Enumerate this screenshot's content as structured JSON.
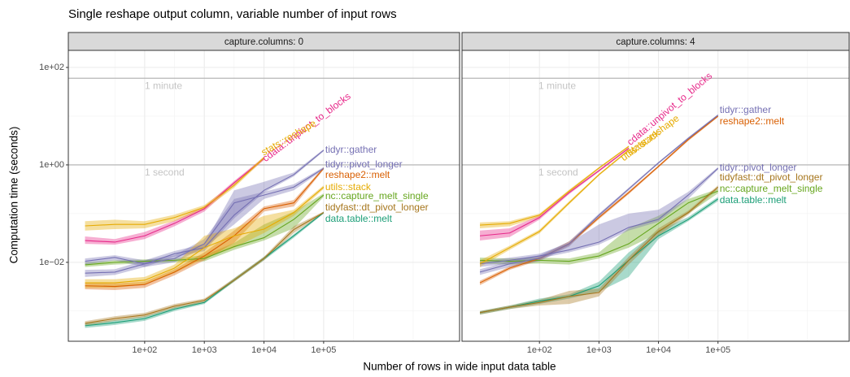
{
  "title": "Single reshape output column, variable number of input rows",
  "x_label": "Number of rows in wide input data table",
  "y_label": "Computation time (seconds)",
  "chart_data": [
    {
      "type": "line",
      "title": "capture.columns: 0",
      "xscale": "log",
      "yscale": "log",
      "grid": true,
      "x": [
        10,
        31.6,
        100,
        316,
        1000,
        3162,
        10000,
        31623,
        100000
      ],
      "xlim": [
        5.25,
        19000000
      ],
      "xticks": [
        {
          "value": 100,
          "label": "1e+02"
        },
        {
          "value": 1000,
          "label": "1e+03"
        },
        {
          "value": 10000,
          "label": "1e+04"
        },
        {
          "value": 100000,
          "label": "1e+05"
        }
      ],
      "ylim": [
        0.00024,
        224
      ],
      "yticks": [
        {
          "value": 100,
          "label": "1e+02"
        },
        {
          "value": 1,
          "label": "1e+00"
        },
        {
          "value": 0.01,
          "label": "1e−02"
        }
      ],
      "annotations": [
        {
          "text": "1 minute",
          "y": 60
        },
        {
          "text": "1 second",
          "y": 1
        }
      ],
      "series": [
        {
          "name": "cdata::unpivot_to_blocks",
          "color": "#e7298a",
          "values": [
            0.028,
            0.026,
            0.035,
            0.063,
            0.126,
            0.43,
            1.35,
            null,
            null
          ],
          "lower": [
            0.024,
            0.023,
            0.03,
            0.055,
            0.11,
            0.39,
            1.25,
            null,
            null
          ],
          "upper": [
            0.034,
            0.03,
            0.042,
            0.072,
            0.14,
            0.47,
            1.45,
            null,
            null
          ]
        },
        {
          "name": "data.table::melt",
          "color": "#1b9e77",
          "values": [
            0.0005,
            0.00058,
            0.0007,
            0.0011,
            0.0015,
            0.0043,
            0.012,
            0.035,
            0.105
          ],
          "lower": [
            0.00045,
            0.00052,
            0.00063,
            0.001,
            0.0014,
            0.004,
            0.011,
            0.032,
            0.1
          ],
          "upper": [
            0.00055,
            0.00065,
            0.00078,
            0.0012,
            0.0016,
            0.0047,
            0.013,
            0.038,
            0.11
          ]
        },
        {
          "name": "nc::capture_melt_single",
          "color": "#66a61e",
          "values": [
            0.0089,
            0.01,
            0.0105,
            0.011,
            0.012,
            0.021,
            0.032,
            0.076,
            0.24
          ],
          "lower": [
            0.008,
            0.009,
            0.0095,
            0.01,
            0.0105,
            0.018,
            0.028,
            0.05,
            0.22
          ],
          "upper": [
            0.01,
            0.011,
            0.0115,
            0.012,
            0.014,
            0.025,
            0.06,
            0.11,
            0.26
          ]
        },
        {
          "name": "reshape2::melt",
          "color": "#d95f02",
          "values": [
            0.0033,
            0.0032,
            0.0035,
            0.0063,
            0.0135,
            0.035,
            0.126,
            0.166,
            0.85
          ],
          "lower": [
            0.0028,
            0.0027,
            0.003,
            0.0054,
            0.011,
            0.025,
            0.11,
            0.14,
            0.8
          ],
          "upper": [
            0.0038,
            0.0037,
            0.004,
            0.0072,
            0.016,
            0.045,
            0.14,
            0.19,
            0.9
          ]
        },
        {
          "name": "stats::reshape",
          "color": "#e6ab02",
          "values": [
            0.056,
            0.06,
            0.06,
            0.083,
            0.135,
            0.38,
            1.4,
            null,
            null
          ],
          "lower": [
            0.045,
            0.048,
            0.05,
            0.07,
            0.12,
            0.34,
            1.3,
            null,
            null
          ],
          "upper": [
            0.07,
            0.075,
            0.07,
            0.095,
            0.15,
            0.42,
            1.5,
            null,
            null
          ]
        },
        {
          "name": "tidyfast::dt_pivot_longer",
          "color": "#a6761d",
          "values": [
            0.00056,
            0.0007,
            0.00083,
            0.00126,
            0.00166,
            0.0043,
            0.012,
            0.047,
            0.105
          ],
          "lower": [
            0.0005,
            0.00063,
            0.00075,
            0.00115,
            0.0015,
            0.004,
            0.011,
            0.04,
            0.1
          ],
          "upper": [
            0.00062,
            0.00078,
            0.00092,
            0.0014,
            0.0018,
            0.0047,
            0.013,
            0.055,
            0.11
          ]
        },
        {
          "name": "tidyr::gather",
          "color": "#7570b3",
          "values": [
            0.0105,
            0.0126,
            0.0093,
            0.015,
            0.02,
            0.093,
            0.3,
            0.63,
            2.0
          ],
          "lower": [
            0.009,
            0.011,
            0.008,
            0.013,
            0.017,
            0.08,
            0.27,
            0.58,
            1.9
          ],
          "upper": [
            0.012,
            0.014,
            0.011,
            0.017,
            0.024,
            0.3,
            0.45,
            0.7,
            2.1
          ]
        },
        {
          "name": "tidyr::pivot_longer",
          "color": "#7570b3",
          "values": [
            0.006,
            0.0063,
            0.0093,
            0.012,
            0.024,
            0.166,
            0.24,
            0.35,
            0.85
          ],
          "lower": [
            0.005,
            0.0055,
            0.008,
            0.01,
            0.02,
            0.06,
            0.2,
            0.3,
            0.8
          ],
          "upper": [
            0.007,
            0.0072,
            0.011,
            0.014,
            0.03,
            0.2,
            0.28,
            0.4,
            0.9
          ]
        },
        {
          "name": "utils::stack",
          "color": "#e6ab02",
          "values": [
            0.0038,
            0.0038,
            0.0043,
            0.0076,
            0.02,
            0.035,
            0.048,
            0.105,
            0.35
          ],
          "lower": [
            0.003,
            0.003,
            0.0035,
            0.006,
            0.012,
            0.02,
            0.04,
            0.09,
            0.32
          ],
          "upper": [
            0.0045,
            0.0045,
            0.005,
            0.009,
            0.035,
            0.05,
            0.09,
            0.12,
            0.38
          ]
        }
      ]
    },
    {
      "type": "line",
      "title": "capture.columns: 4",
      "xscale": "log",
      "yscale": "log",
      "grid": true,
      "x": [
        10,
        31.6,
        100,
        316,
        1000,
        3162,
        10000,
        31623,
        100000
      ],
      "xlim": [
        5,
        16000000
      ],
      "xticks": [
        {
          "value": 100,
          "label": "1e+02"
        },
        {
          "value": 1000,
          "label": "1e+03"
        },
        {
          "value": 10000,
          "label": "1e+04"
        },
        {
          "value": 100000,
          "label": "1e+05"
        }
      ],
      "ylim": [
        0.00024,
        224
      ],
      "yticks": [
        100,
        1,
        0.01
      ],
      "annotations": [
        {
          "text": "1 minute",
          "y": 60
        },
        {
          "text": "1 second",
          "y": 1
        }
      ],
      "series": [
        {
          "name": "cdata::unpivot_to_blocks",
          "color": "#e7298a",
          "values": [
            0.035,
            0.04,
            0.083,
            0.27,
            0.76,
            2.2,
            null,
            null,
            null
          ],
          "lower": [
            0.028,
            0.033,
            0.075,
            0.25,
            0.72,
            2.1,
            null,
            null,
            null
          ],
          "upper": [
            0.045,
            0.05,
            0.092,
            0.29,
            0.8,
            2.3,
            null,
            null,
            null
          ]
        },
        {
          "name": "data.table::melt",
          "color": "#1b9e77",
          "values": [
            0.00093,
            0.0012,
            0.0016,
            0.002,
            0.0033,
            0.011,
            0.035,
            0.076,
            0.2
          ],
          "lower": [
            0.00085,
            0.0011,
            0.0014,
            0.0018,
            0.0025,
            0.005,
            0.03,
            0.07,
            0.18
          ],
          "upper": [
            0.001,
            0.0013,
            0.0018,
            0.0022,
            0.004,
            0.016,
            0.045,
            0.085,
            0.22
          ]
        },
        {
          "name": "nc::capture_melt_single",
          "color": "#66a61e",
          "values": [
            0.011,
            0.0105,
            0.011,
            0.0105,
            0.0135,
            0.024,
            0.063,
            0.166,
            0.29
          ],
          "lower": [
            0.0095,
            0.009,
            0.0095,
            0.009,
            0.012,
            0.02,
            0.04,
            0.1,
            0.26
          ],
          "upper": [
            0.0125,
            0.012,
            0.0125,
            0.012,
            0.016,
            0.05,
            0.09,
            0.2,
            0.32
          ]
        },
        {
          "name": "reshape2::melt",
          "color": "#d95f02",
          "values": [
            0.0038,
            0.0076,
            0.012,
            0.024,
            0.083,
            0.27,
            0.93,
            3.3,
            10
          ],
          "lower": [
            0.0034,
            0.007,
            0.011,
            0.022,
            0.077,
            0.25,
            0.88,
            3.1,
            9.5
          ],
          "upper": [
            0.0042,
            0.0083,
            0.013,
            0.027,
            0.09,
            0.29,
            0.98,
            3.5,
            10.5
          ]
        },
        {
          "name": "stats::reshape",
          "color": "#e6ab02",
          "values": [
            0.058,
            0.063,
            0.093,
            0.29,
            0.86,
            2.4,
            null,
            null,
            null
          ],
          "lower": [
            0.05,
            0.055,
            0.085,
            0.27,
            0.82,
            2.3,
            null,
            null,
            null
          ],
          "upper": [
            0.066,
            0.07,
            0.1,
            0.31,
            0.9,
            2.5,
            null,
            null,
            null
          ]
        },
        {
          "name": "tidyfast::dt_pivot_longer",
          "color": "#a6761d",
          "values": [
            0.00093,
            0.0012,
            0.0015,
            0.002,
            0.0024,
            0.011,
            0.043,
            0.105,
            0.35
          ],
          "lower": [
            0.00085,
            0.0011,
            0.0013,
            0.0014,
            0.002,
            0.009,
            0.035,
            0.095,
            0.32
          ],
          "upper": [
            0.001,
            0.0013,
            0.0017,
            0.0026,
            0.0029,
            0.013,
            0.05,
            0.115,
            0.38
          ]
        },
        {
          "name": "tidyr::gather",
          "color": "#7570b3",
          "values": [
            0.0063,
            0.0093,
            0.012,
            0.024,
            0.093,
            0.32,
            1.1,
            3.5,
            10.5
          ],
          "lower": [
            0.0055,
            0.008,
            0.0105,
            0.021,
            0.085,
            0.3,
            1.05,
            3.3,
            10
          ],
          "upper": [
            0.0072,
            0.0105,
            0.014,
            0.027,
            0.1,
            0.34,
            1.15,
            3.7,
            11
          ]
        },
        {
          "name": "tidyr::pivot_longer",
          "color": "#7570b3",
          "values": [
            0.0093,
            0.011,
            0.0135,
            0.018,
            0.026,
            0.052,
            0.076,
            0.24,
            0.85
          ],
          "lower": [
            0.008,
            0.0095,
            0.012,
            0.016,
            0.023,
            0.045,
            0.068,
            0.2,
            0.8
          ],
          "upper": [
            0.0105,
            0.0125,
            0.015,
            0.025,
            0.06,
            0.1,
            0.12,
            0.28,
            0.9
          ]
        },
        {
          "name": "utils::stack",
          "color": "#e6ab02",
          "values": [
            0.0093,
            0.02,
            0.043,
            0.166,
            0.63,
            2.0,
            null,
            null,
            null
          ],
          "lower": [
            0.008,
            0.018,
            0.039,
            0.155,
            0.6,
            1.9,
            null,
            null,
            null
          ],
          "upper": [
            0.011,
            0.022,
            0.047,
            0.18,
            0.66,
            2.1,
            null,
            null,
            null
          ]
        }
      ]
    }
  ]
}
